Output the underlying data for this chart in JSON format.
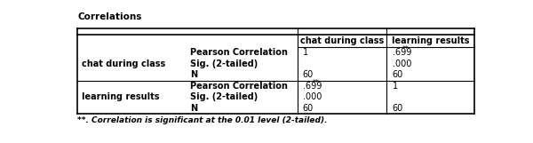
{
  "title": "Correlations",
  "footnote": "**. Correlation is significant at the 0.01 level (2-tailed).",
  "col_headers": [
    "chat during class",
    "learning results"
  ],
  "rows": [
    {
      "group": "chat during class",
      "metrics": [
        "Pearson Correlation",
        "Sig. (2-tailed)",
        "N"
      ],
      "col1": [
        "1",
        "",
        "60"
      ],
      "col2": [
        ".699**",
        ".000",
        "60"
      ]
    },
    {
      "group": "learning results",
      "metrics": [
        "Pearson Correlation",
        "Sig. (2-tailed)",
        "N"
      ],
      "col1": [
        ".699**",
        ".000",
        "60"
      ],
      "col2": [
        "1",
        "",
        "60"
      ]
    }
  ],
  "fig_width": 6.0,
  "fig_height": 1.61,
  "dpi": 100,
  "font_size": 7.0,
  "title_font_size": 7.5,
  "footnote_font_size": 6.5,
  "font_family": "Times New Roman",
  "bg_color": "#ffffff"
}
